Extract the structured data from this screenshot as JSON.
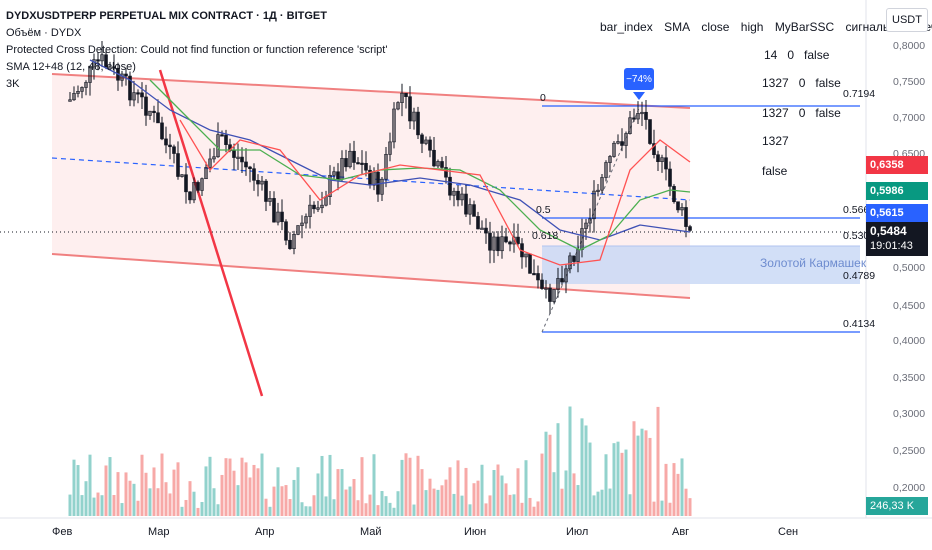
{
  "legend": {
    "title": "DYDXUSDTPERP PERPETUAL MIX CONTRACT · 1Д · BITGET",
    "volume": "Объём · DYDX",
    "error": "Protected Cross Detection: Could not find function or function reference 'script'",
    "sma": "SMA 12+48 (12, 48, close)",
    "label3k": "3K"
  },
  "table": {
    "headers": [
      "bar_index",
      "SMA",
      "close",
      "high",
      "MyBarSSC",
      "сигнальная свеча"
    ],
    "rows": [
      [
        "14",
        "0",
        "false"
      ],
      [
        "1327",
        "0",
        "false"
      ],
      [
        "1327",
        "0",
        "false"
      ],
      [
        "1327"
      ],
      [
        "false"
      ]
    ]
  },
  "currency": "USDT",
  "y_axis": [
    "0,8000",
    "0,7500",
    "0,7000",
    "0,6500",
    "0,6000",
    "0,5500",
    "0,5000",
    "0,4500",
    "0,4000",
    "0,3500",
    "0,3000",
    "0,2500",
    "0,2000"
  ],
  "x_axis": [
    "Фев",
    "Мар",
    "Апр",
    "Май",
    "Июн",
    "Июл",
    "Авг",
    "Сен"
  ],
  "price_badges": {
    "red": "0,6358",
    "green": "0,5986",
    "blue": "0,5615",
    "last": "0,5484",
    "countdown": "19:01:43",
    "volume": "246,33 K"
  },
  "fib_labels": {
    "l0": "0",
    "l05": "0.5",
    "l0618": "0.618",
    "v7194": "0.7194",
    "v5664": "0.5664",
    "v5303": "0.5303",
    "v4789": "0.4789",
    "v4134": "0.4134"
  },
  "callout": "−74%",
  "golden_pocket": "Золотой Кармашек",
  "colors": {
    "up": "#26a69a",
    "down": "#ef5350",
    "channel": "#f08080",
    "sma_green": "#4caf50",
    "sma_red": "#ff5252",
    "sma_blue": "#3f51b5",
    "fib": "#2962ff",
    "badge_red": "#f23645",
    "badge_green": "#089981",
    "badge_blue": "#2962ff"
  }
}
